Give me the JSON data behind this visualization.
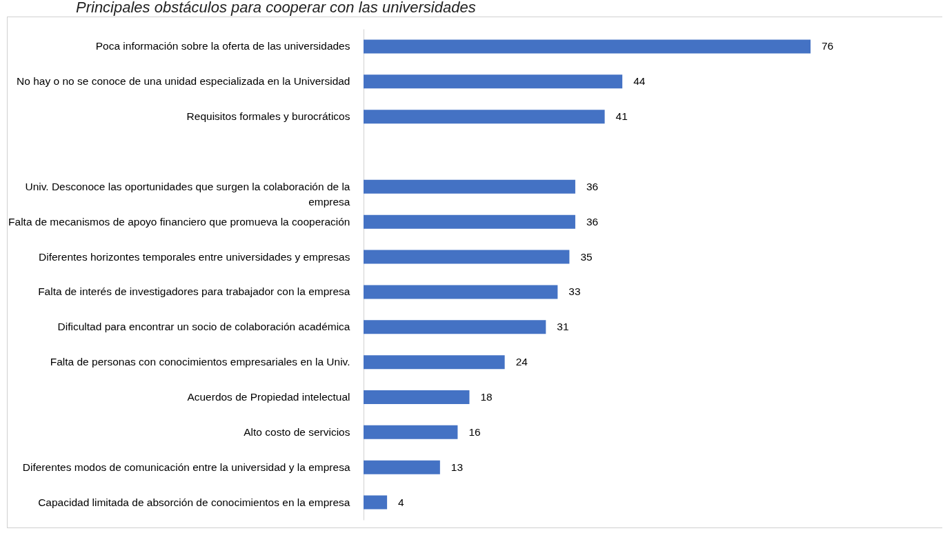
{
  "chart_data": {
    "type": "bar",
    "orientation": "horizontal",
    "title": "Principales obstáculos para cooperar con las universidades",
    "categories": [
      "Poca información sobre la oferta de las universidades",
      "No hay o no se conoce de una unidad especializada en la Universidad",
      "Requisitos formales y burocráticos",
      null,
      "Univ. Desconoce las oportunidades que surgen la colaboración de la empresa",
      "Falta de mecanismos de apoyo financiero que promueva la cooperación",
      "Diferentes horizontes temporales entre universidades y empresas",
      "Falta de interés de investigadores para trabajador con la empresa",
      "Dificultad para encontrar un socio de colaboración académica",
      "Falta de personas con conocimientos empresariales en la Univ.",
      "Acuerdos de Propiedad intelectual",
      "Alto costo de servicios",
      "Diferentes modos de comunicación entre la universidad y la empresa",
      "Capacidad limitada de absorción de conocimientos en la empresa"
    ],
    "values": [
      76,
      44,
      41,
      null,
      36,
      36,
      35,
      33,
      31,
      24,
      18,
      16,
      13,
      4
    ],
    "color": "#4472c4",
    "data_labels": true
  }
}
